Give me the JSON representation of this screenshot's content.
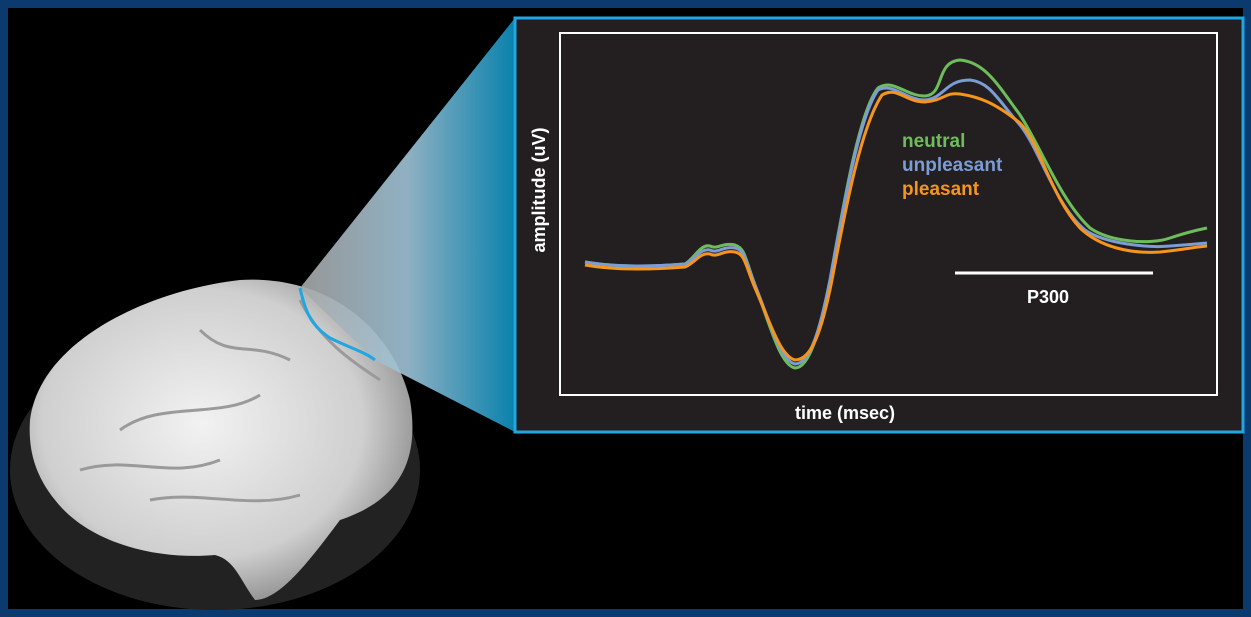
{
  "plot": {
    "y_label": "amplitude (uV)",
    "x_label": "time (msec)",
    "annotation": "P300",
    "legend": [
      "neutral",
      "unpleasant",
      "pleasant"
    ]
  }
}
